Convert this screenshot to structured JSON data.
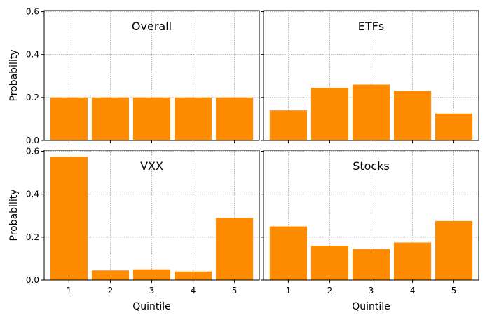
{
  "chart_data": [
    {
      "type": "bar",
      "title": "Overall",
      "categories": [
        "1",
        "2",
        "3",
        "4",
        "5"
      ],
      "values": [
        0.2,
        0.2,
        0.2,
        0.2,
        0.2
      ],
      "xlabel": "",
      "ylabel": "Probability",
      "ylim": [
        0,
        0.6
      ],
      "yticks": [
        "0.0",
        "0.2",
        "0.4",
        "0.6"
      ],
      "grid": true
    },
    {
      "type": "bar",
      "title": "ETFs",
      "categories": [
        "1",
        "2",
        "3",
        "4",
        "5"
      ],
      "values": [
        0.14,
        0.245,
        0.26,
        0.23,
        0.125
      ],
      "xlabel": "",
      "ylabel": "",
      "ylim": [
        0,
        0.6
      ],
      "grid": true
    },
    {
      "type": "bar",
      "title": "VXX",
      "categories": [
        "1",
        "2",
        "3",
        "4",
        "5"
      ],
      "values": [
        0.575,
        0.045,
        0.05,
        0.04,
        0.29
      ],
      "xlabel": "Quintile",
      "ylabel": "Probability",
      "ylim": [
        0,
        0.6
      ],
      "yticks": [
        "0.0",
        "0.2",
        "0.4",
        "0.6"
      ],
      "grid": true
    },
    {
      "type": "bar",
      "title": "Stocks",
      "categories": [
        "1",
        "2",
        "3",
        "4",
        "5"
      ],
      "values": [
        0.25,
        0.16,
        0.145,
        0.175,
        0.275
      ],
      "xlabel": "Quintile",
      "ylabel": "",
      "ylim": [
        0,
        0.6
      ],
      "grid": true
    }
  ],
  "colors": {
    "bar": "#ff8c00",
    "grid": "#a0a0a0",
    "axis": "#000000"
  }
}
